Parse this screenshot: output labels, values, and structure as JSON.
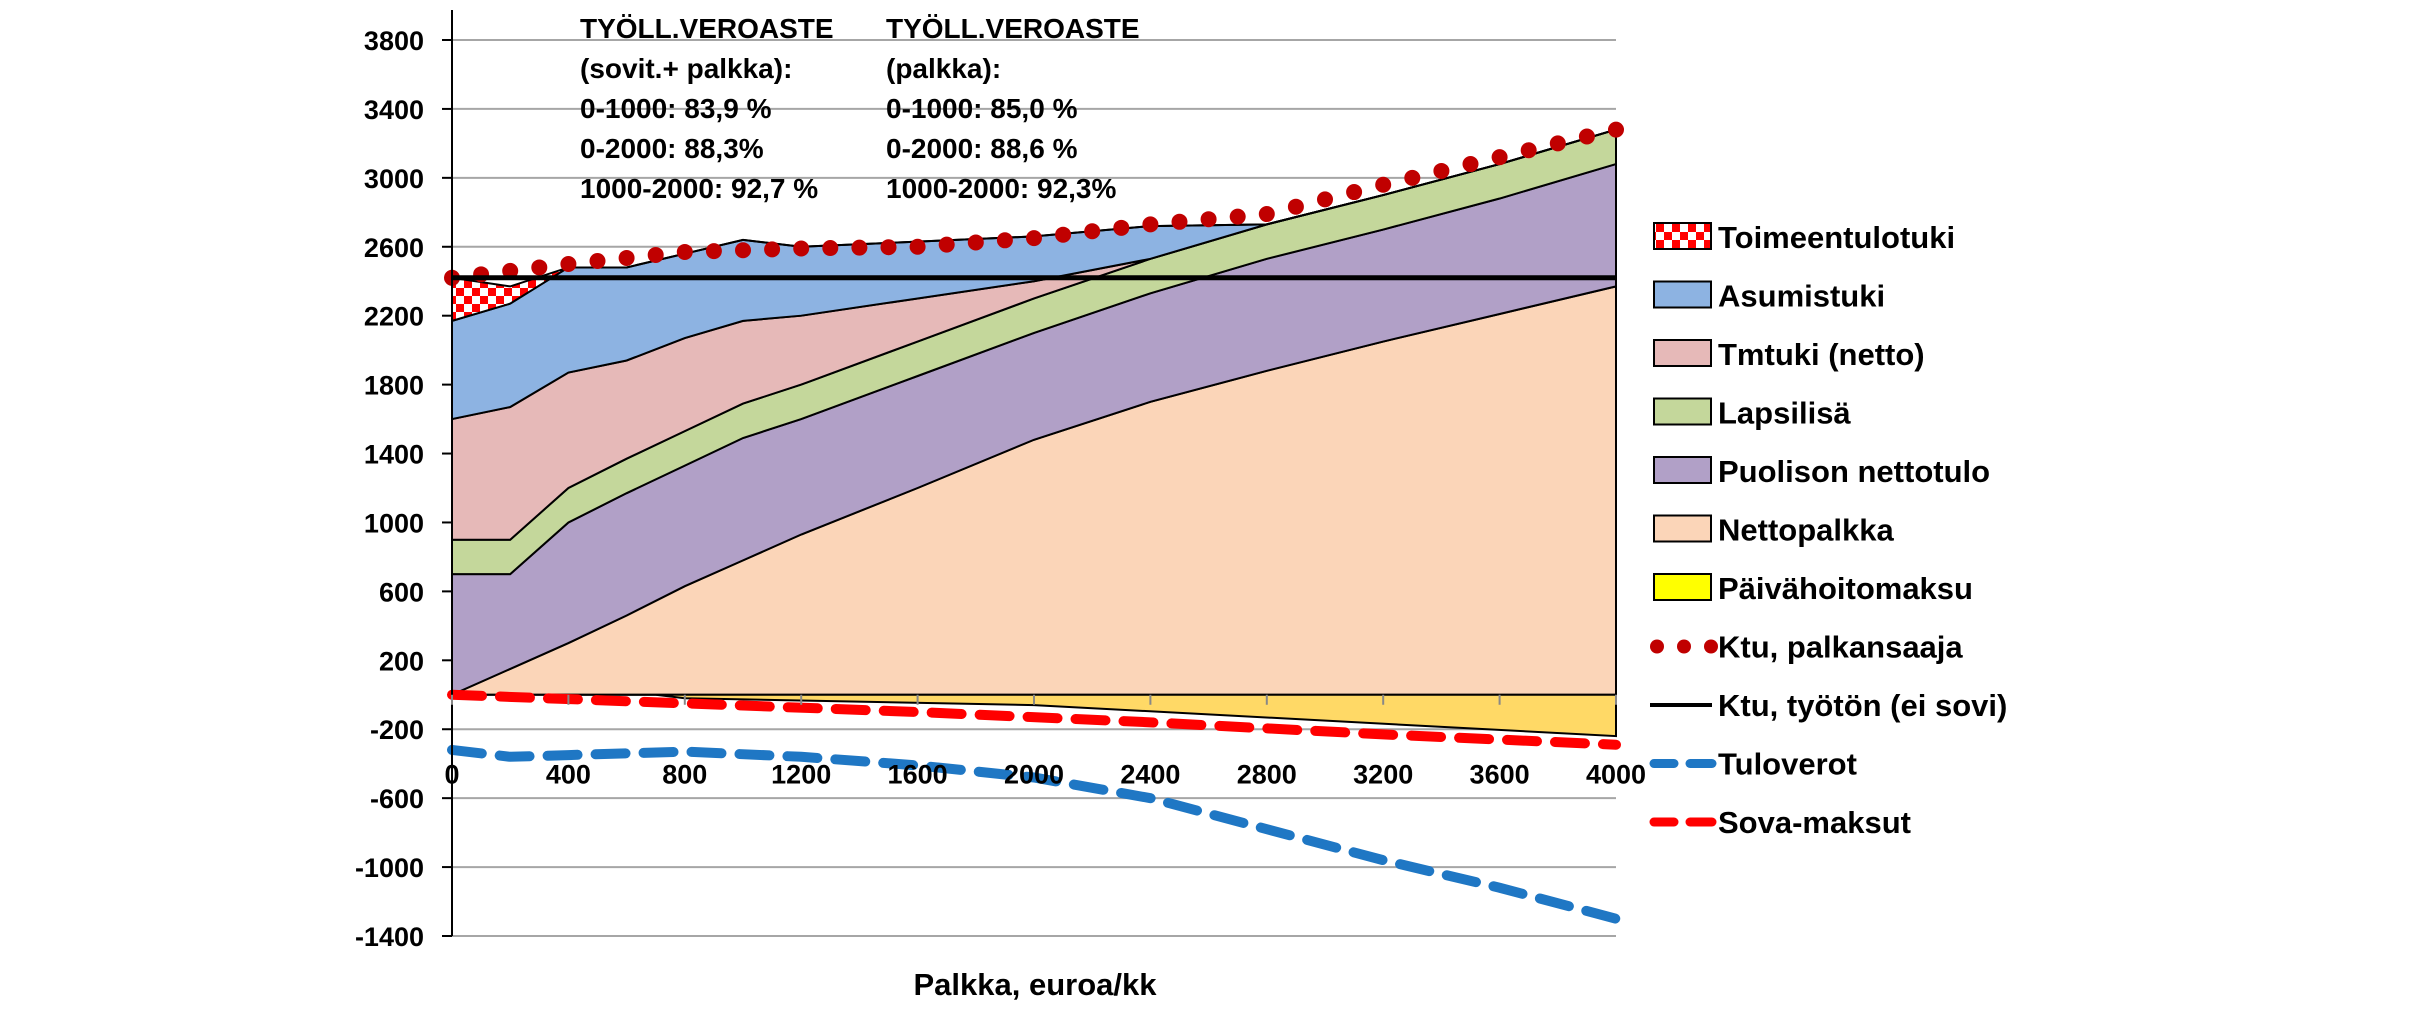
{
  "chart_data": {
    "type": "area",
    "title": "",
    "xlabel": "Palkka, euroa/kk",
    "ylabel": "",
    "xlim": [
      0,
      4000
    ],
    "ylim": [
      -1400,
      3800
    ],
    "x_ticks": [
      0,
      400,
      800,
      1200,
      1600,
      2000,
      2400,
      2800,
      3200,
      3600,
      4000
    ],
    "y_ticks": [
      3800,
      3400,
      3000,
      2600,
      2200,
      1800,
      1400,
      1000,
      600,
      200,
      -200,
      -600,
      -1000,
      -1400
    ],
    "grid": "horizontal",
    "legend_position": "right",
    "x": [
      0,
      200,
      400,
      600,
      800,
      1000,
      1200,
      1600,
      2000,
      2400,
      2800,
      3200,
      3600,
      4000
    ],
    "stacked_series": [
      {
        "name": "Nettopalkka",
        "color": "#fbd5b8",
        "values": [
          0,
          150,
          300,
          460,
          630,
          780,
          930,
          1200,
          1480,
          1700,
          1880,
          2050,
          2210,
          2370
        ]
      },
      {
        "name": "Puolison nettotulo",
        "color": "#b1a0c7",
        "values": [
          700,
          550,
          700,
          710,
          700,
          710,
          670,
          650,
          620,
          630,
          650,
          650,
          670,
          710
        ]
      },
      {
        "name": "Lapsilisä",
        "color": "#c4d79b",
        "values": [
          200,
          200,
          200,
          200,
          200,
          200,
          200,
          200,
          200,
          200,
          200,
          200,
          200,
          200
        ]
      },
      {
        "name": "Tmtuki (netto)",
        "color": "#e6b9b8",
        "values": [
          700,
          770,
          670,
          570,
          540,
          480,
          400,
          250,
          100,
          0,
          0,
          0,
          0,
          0
        ]
      },
      {
        "name": "Asumistuki",
        "color": "#8db3e2",
        "values": [
          570,
          600,
          610,
          540,
          490,
          470,
          400,
          330,
          260,
          190,
          0,
          0,
          0,
          0
        ]
      },
      {
        "name": "Toimeentulotuki",
        "color": "#ff0000",
        "values": [
          250,
          100,
          0,
          0,
          0,
          0,
          0,
          0,
          0,
          0,
          0,
          0,
          0,
          0
        ]
      }
    ],
    "negative_area": {
      "name": "Päivähoitomaksu",
      "color": "#ffd966",
      "x": [
        0,
        700,
        800,
        2000,
        4000
      ],
      "values": [
        0,
        0,
        -20,
        -60,
        -240
      ]
    },
    "lines": [
      {
        "name": "Ktu, palkansaaja",
        "style": "dots",
        "color": "#c00000",
        "x": [
          0,
          400,
          800,
          1200,
          1600,
          2000,
          2400,
          2800,
          3200,
          3600,
          4000
        ],
        "values": [
          2420,
          2500,
          2570,
          2590,
          2600,
          2650,
          2730,
          2790,
          2960,
          3120,
          3280
        ]
      },
      {
        "name": "Ktu, työtön (ei sovi)",
        "style": "solid",
        "color": "#000000",
        "x": [
          0,
          4000
        ],
        "values": [
          2420,
          2420
        ]
      },
      {
        "name": "Tuloverot",
        "style": "dashed",
        "color": "#1f77c4",
        "x": [
          0,
          200,
          400,
          800,
          1200,
          1600,
          2000,
          2400,
          2800,
          3200,
          3600,
          4000
        ],
        "values": [
          -320,
          -360,
          -350,
          -330,
          -360,
          -410,
          -480,
          -600,
          -780,
          -960,
          -1120,
          -1300
        ]
      },
      {
        "name": "Sova-maksut",
        "style": "dashed",
        "color": "#ff0000",
        "x": [
          0,
          800,
          1600,
          2400,
          3200,
          4000
        ],
        "values": [
          0,
          -50,
          -100,
          -160,
          -230,
          -290
        ]
      }
    ],
    "legend": [
      "Toimeentulotuki",
      "Asumistuki",
      "Tmtuki (netto)",
      "Lapsilisä",
      "Puolison nettotulo",
      "Nettopalkka",
      "Päivähoitomaksu",
      "Ktu, palkansaaja",
      "Ktu, työtön (ei sovi)",
      "Tuloverot",
      "Sova-maksut"
    ],
    "annotations": [
      {
        "lines": [
          "TYÖLL.VEROASTE",
          "(sovit.+ palkka):",
          "0-1000: 83,9 %",
          "0-2000:  88,3%",
          "1000-2000: 92,7 %"
        ]
      },
      {
        "lines": [
          "TYÖLL.VEROASTE",
          "(palkka):",
          "0-1000: 85,0 %",
          "0-2000: 88,6 %",
          "1000-2000: 92,3%"
        ]
      }
    ]
  }
}
